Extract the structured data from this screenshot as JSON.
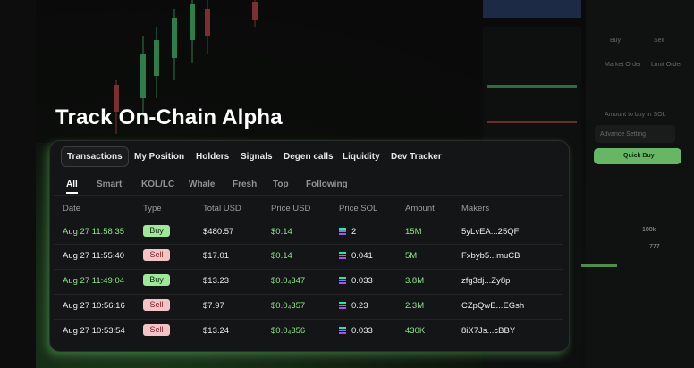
{
  "headline": "Track On-Chain Alpha",
  "tabs": [
    "Transactions",
    "My Position",
    "Holders",
    "Signals",
    "Degen calls",
    "Liquidity",
    "Dev Tracker"
  ],
  "filters": [
    "All",
    "Smart",
    "KOL/LC",
    "Whale",
    "Fresh",
    "Top",
    "Following"
  ],
  "table": {
    "columns": [
      "Date",
      "Type",
      "Total USD",
      "Price USD",
      "Price SOL",
      "Amount",
      "Makers"
    ],
    "rows": [
      [
        "Aug 27 11:58:35",
        "Buy",
        "$480.57",
        "$0.14",
        "2",
        "15M",
        "5yLvEA...25QF"
      ],
      [
        "Aug 27 11:55:40",
        "Sell",
        "$17.01",
        "$0.14",
        "0.041",
        "5M",
        "Fxbyb5...muCB"
      ],
      [
        "Aug 27 11:49:04",
        "Buy",
        "$13.23",
        "$0.0₄347",
        "0.033",
        "3.8M",
        "zfg3dj...Zy8p"
      ],
      [
        "Aug 27 10:56:16",
        "Sell",
        "$7.97",
        "$0.0₄357",
        "0.23",
        "2.3M",
        "CZpQwE...EGsh"
      ],
      [
        "Aug 27 10:53:54",
        "Sell",
        "$13.24",
        "$0.0₄356",
        "0.033",
        "430K",
        "8iX7Js...cBBY"
      ]
    ]
  },
  "background": {
    "buy": "Buy",
    "sell": "Sell",
    "market_order": "Market Order",
    "limit_order": "Limit Order",
    "amount_hint": "Amount to buy in SOL",
    "advance_setting": "Advance Setting",
    "quick_buy": "Quick Buy",
    "slippage_value": "100k",
    "priority_value": "777"
  }
}
